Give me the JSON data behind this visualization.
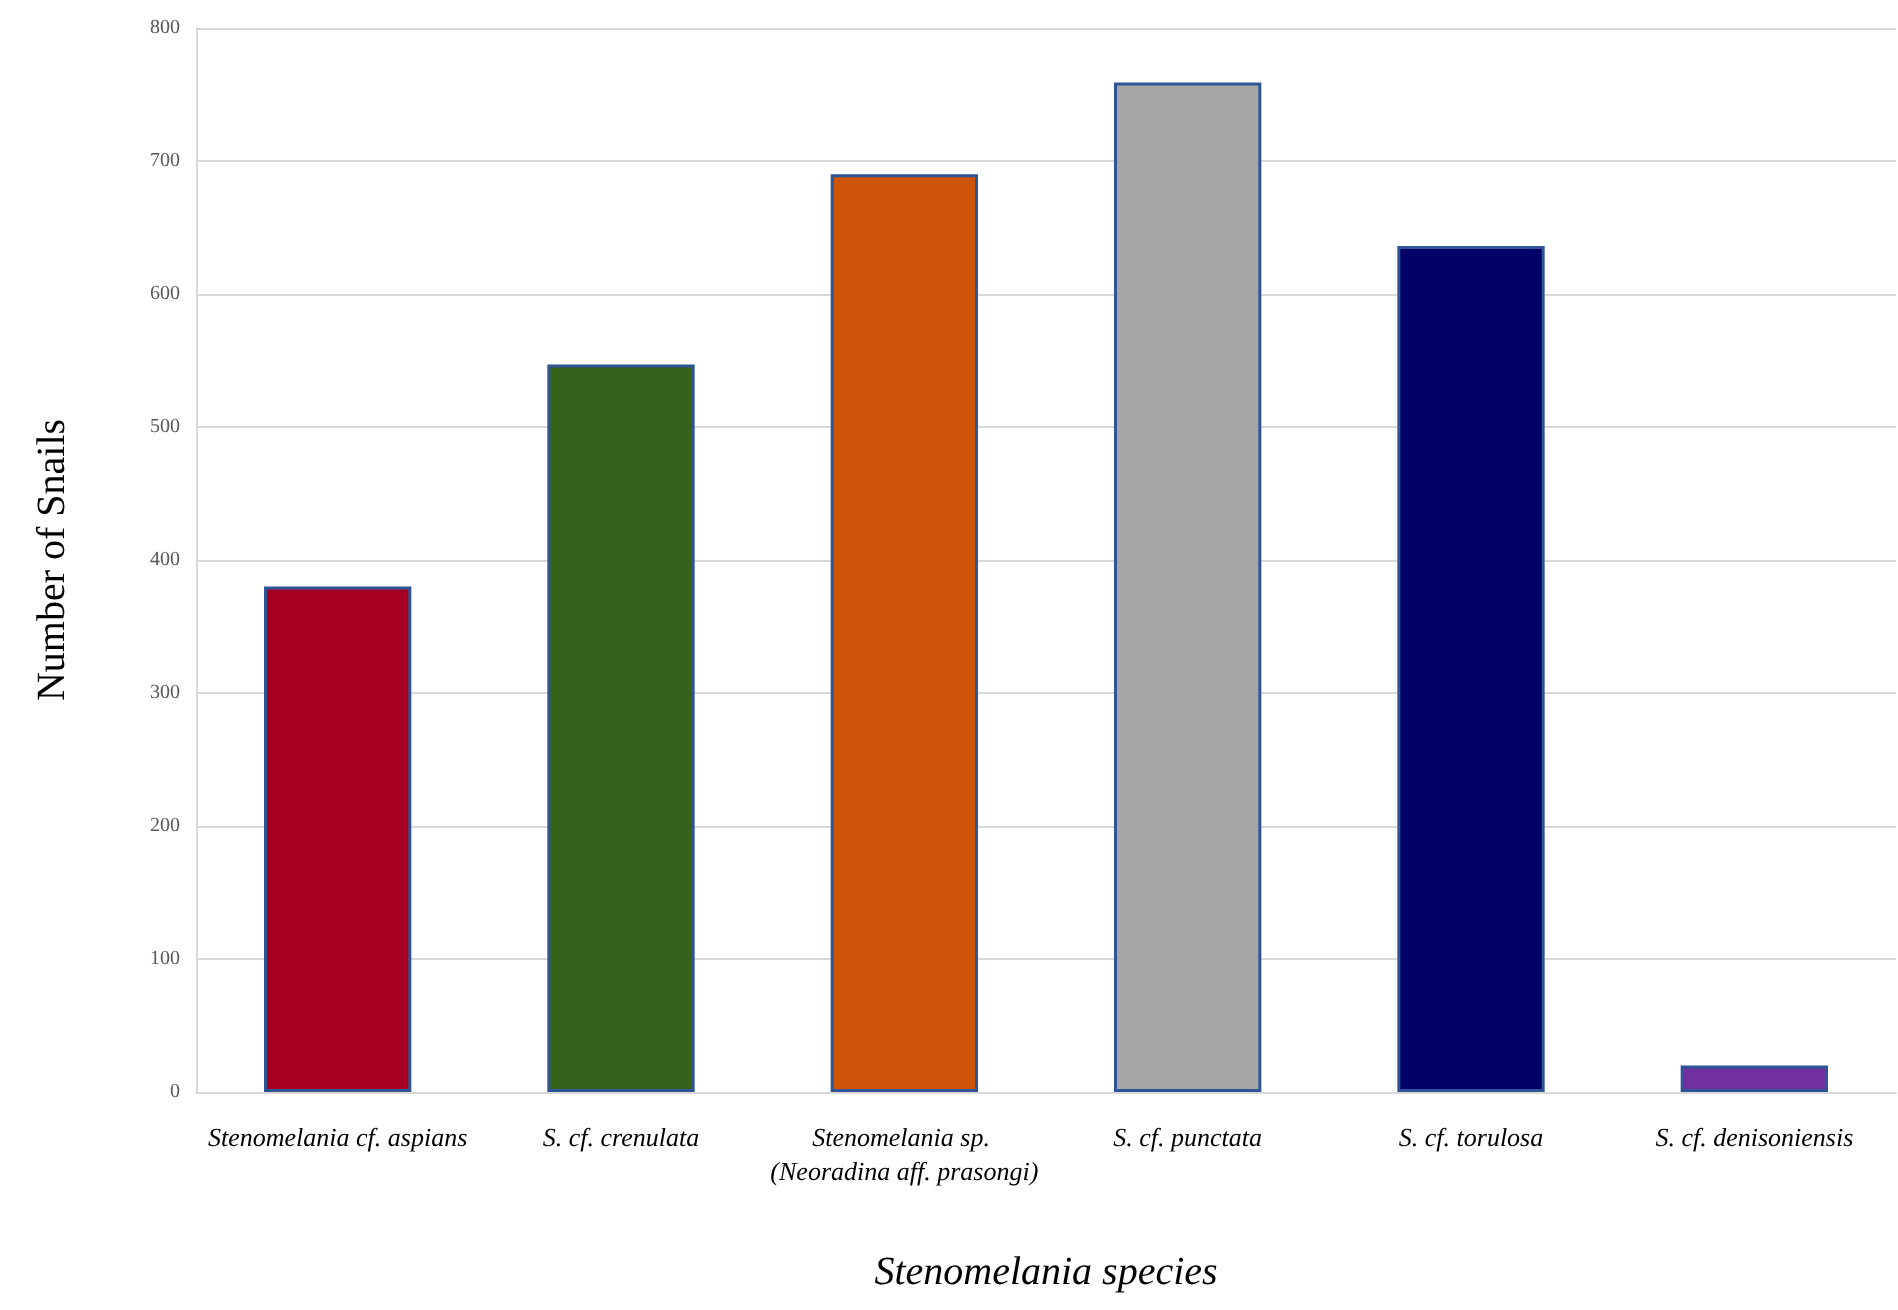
{
  "chart_data": {
    "type": "bar",
    "xlabel": "Stenomelania species",
    "ylabel": "Number of Snails",
    "categories": [
      "Stenomelania cf. aspians",
      "S. cf. crenulata",
      "Stenomelania sp. (Neoradina aff. prasongi)",
      "S. cf. punctata",
      "S. cf. torulosa",
      "S. cf. denisoniensis"
    ],
    "values": [
      380,
      547,
      690,
      759,
      636,
      20
    ],
    "colors": [
      "#a50021",
      "#376219",
      "#cc550a",
      "#a6a6a6",
      "#000066",
      "#7030a0"
    ],
    "ylim": [
      0,
      800
    ],
    "yticks": [
      0,
      100,
      200,
      300,
      400,
      500,
      600,
      700,
      800
    ],
    "grid": "y"
  }
}
